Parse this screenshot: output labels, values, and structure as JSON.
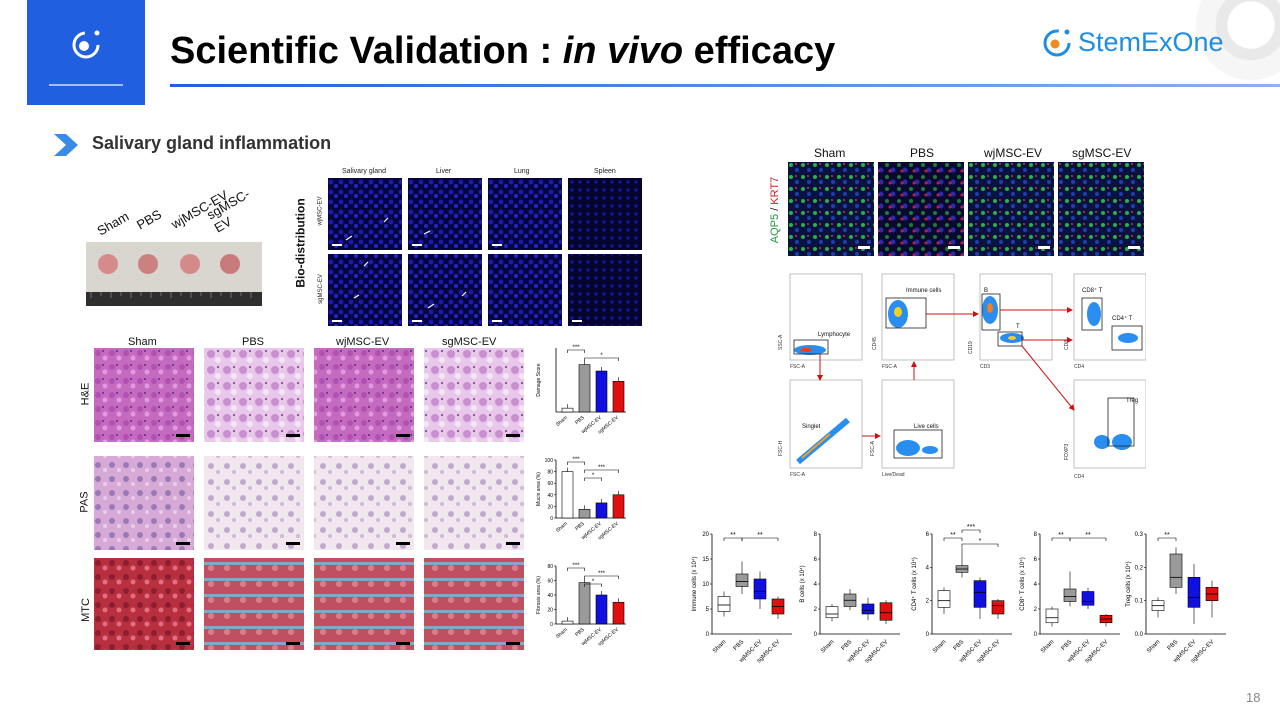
{
  "header": {
    "title_prefix": "Scientific Validation : ",
    "title_italic": "in vivo",
    "title_suffix": " efficacy",
    "brand": "StemExOne",
    "logo_icon": "eye-logo-icon",
    "colors": {
      "accent": "#1f5fe0",
      "brand": "#1f8de0"
    }
  },
  "section": {
    "label": "Salivary gland inflammation",
    "icon": "chevron-right-icon"
  },
  "page_number": "18",
  "gland_photo": {
    "groups": [
      "Sham",
      "PBS",
      "wjMSC-EV",
      "sgMSC-EV"
    ]
  },
  "biodistribution": {
    "title": "Bio-distribution",
    "organs": [
      "Salivary gland",
      "Liver",
      "Lung",
      "Spleen"
    ],
    "rows": [
      "wjMSC-EV",
      "sgMSC-EV"
    ]
  },
  "histology": {
    "groups": [
      "Sham",
      "PBS",
      "wjMSC-EV",
      "sgMSC-EV"
    ],
    "stains": [
      "H&E",
      "PAS",
      "MTC"
    ]
  },
  "ihc": {
    "groups": [
      "Sham",
      "PBS",
      "wjMSC-EV",
      "sgMSC-EV"
    ],
    "marker1": "AQP5",
    "sep": " / ",
    "marker2": "KRT7"
  },
  "flow": {
    "gates": [
      "Lymphocyte",
      "Singlet",
      "Immune cells",
      "Live cells",
      "B",
      "T",
      "CD8⁺ T",
      "CD4⁺ T",
      "Treg"
    ],
    "axes": [
      "SSC-A",
      "FSC-A",
      "FSC-H",
      "FSC-A",
      "CD45",
      "FSC-A",
      "FSC-A",
      "Live/Dead",
      "CD19",
      "CD3",
      "CD8",
      "CD4",
      "FOXP3",
      "CD4"
    ]
  },
  "chart_data": [
    {
      "type": "bar",
      "ylabel": "Damage Score",
      "categories": [
        "Sham",
        "PBS",
        "wjMSC-EV",
        "sgMSC-EV"
      ],
      "values": [
        0.3,
        3.7,
        3.2,
        2.4
      ],
      "ylim": [
        0,
        5
      ],
      "sig": [
        "***",
        "*"
      ],
      "colors": [
        "#ffffff",
        "#9a9a9a",
        "#1010e0",
        "#e01010"
      ]
    },
    {
      "type": "bar",
      "ylabel": "Mucin area (%)",
      "categories": [
        "Sham",
        "PBS",
        "wjMSC-EV",
        "sgMSC-EV"
      ],
      "values": [
        80,
        15,
        26,
        40
      ],
      "ylim": [
        0,
        100
      ],
      "yticks": [
        "0",
        "20",
        "40",
        "60",
        "80",
        "100"
      ],
      "sig": [
        "***",
        "***",
        "*"
      ],
      "colors": [
        "#ffffff",
        "#9a9a9a",
        "#1010e0",
        "#e01010"
      ]
    },
    {
      "type": "bar",
      "ylabel": "Fibrosis area (%)",
      "categories": [
        "Sham",
        "PBS",
        "wjMSC-EV",
        "sgMSC-EV"
      ],
      "values": [
        4,
        57,
        40,
        30
      ],
      "ylim": [
        0,
        80
      ],
      "yticks": [
        "0",
        "20",
        "40",
        "60",
        "80"
      ],
      "sig": [
        "***",
        "***",
        "*"
      ],
      "colors": [
        "#ffffff",
        "#9a9a9a",
        "#1010e0",
        "#e01010"
      ]
    },
    {
      "type": "box",
      "ylabel": "Immune cells (x 10⁴)",
      "categories": [
        "Sham",
        "PBS",
        "wjMSC-EV",
        "sgMSC-EV"
      ],
      "ylim": [
        0,
        20
      ],
      "yticks": [
        "0",
        "5",
        "10",
        "15",
        "20"
      ],
      "boxes": [
        [
          3.5,
          4.5,
          5.8,
          7.5,
          8.5
        ],
        [
          8,
          9.5,
          10.5,
          12,
          14.5
        ],
        [
          5,
          7,
          8.5,
          11,
          12.5
        ],
        [
          3,
          4,
          5.5,
          7,
          7.5
        ]
      ],
      "sig": [
        "**",
        "**"
      ]
    },
    {
      "type": "box",
      "ylabel": "B cells (x 10⁴)",
      "categories": [
        "Sham",
        "PBS",
        "wjMSC-EV",
        "sgMSC-EV"
      ],
      "ylim": [
        0,
        8
      ],
      "yticks": [
        "0",
        "2",
        "4",
        "6",
        "8"
      ],
      "boxes": [
        [
          1,
          1.3,
          1.6,
          2.2,
          2.4
        ],
        [
          1.9,
          2.2,
          2.7,
          3.2,
          3.6
        ],
        [
          1.1,
          1.6,
          1.9,
          2.4,
          2.9
        ],
        [
          0.8,
          1.1,
          1.7,
          2.5,
          2.7
        ]
      ],
      "sig": []
    },
    {
      "type": "box",
      "ylabel": "CD4⁺ T cells (x 10⁴)",
      "categories": [
        "Sham",
        "PBS",
        "wjMSC-EV",
        "sgMSC-EV"
      ],
      "ylim": [
        0,
        6
      ],
      "yticks": [
        "0",
        "2",
        "4",
        "6"
      ],
      "boxes": [
        [
          1.2,
          1.6,
          2,
          2.6,
          2.8
        ],
        [
          3.4,
          3.7,
          3.9,
          4.1,
          5.2
        ],
        [
          0.9,
          1.6,
          2.5,
          3.2,
          3.4
        ],
        [
          0.9,
          1.2,
          1.7,
          2,
          2.1
        ]
      ],
      "sig": [
        "**",
        "*",
        "***"
      ]
    },
    {
      "type": "box",
      "ylabel": "CD8⁺ T cells (x 10⁴)",
      "categories": [
        "Sham",
        "PBS",
        "wjMSC-EV",
        "sgMSC-EV"
      ],
      "ylim": [
        0,
        8
      ],
      "yticks": [
        "0",
        "2",
        "4",
        "6",
        "8"
      ],
      "boxes": [
        [
          0.6,
          0.9,
          1.3,
          2,
          2.2
        ],
        [
          2.2,
          2.6,
          3,
          3.6,
          5
        ],
        [
          2,
          2.3,
          2.6,
          3.4,
          3.7
        ],
        [
          0.6,
          0.9,
          1.2,
          1.5,
          1.6
        ]
      ],
      "sig": [
        "**",
        "**"
      ]
    },
    {
      "type": "box",
      "ylabel": "Treg cells (x 10⁴)",
      "categories": [
        "Sham",
        "PBS",
        "wjMSC-EV",
        "sgMSC-EV"
      ],
      "ylim": [
        0,
        0.3
      ],
      "yticks": [
        "0.0",
        "0.1",
        "0.2",
        "0.3"
      ],
      "boxes": [
        [
          0.05,
          0.07,
          0.085,
          0.1,
          0.11
        ],
        [
          0.12,
          0.14,
          0.17,
          0.24,
          0.26
        ],
        [
          0.03,
          0.08,
          0.11,
          0.17,
          0.21
        ],
        [
          0.05,
          0.1,
          0.12,
          0.14,
          0.16
        ]
      ],
      "sig": [
        "**"
      ]
    }
  ]
}
